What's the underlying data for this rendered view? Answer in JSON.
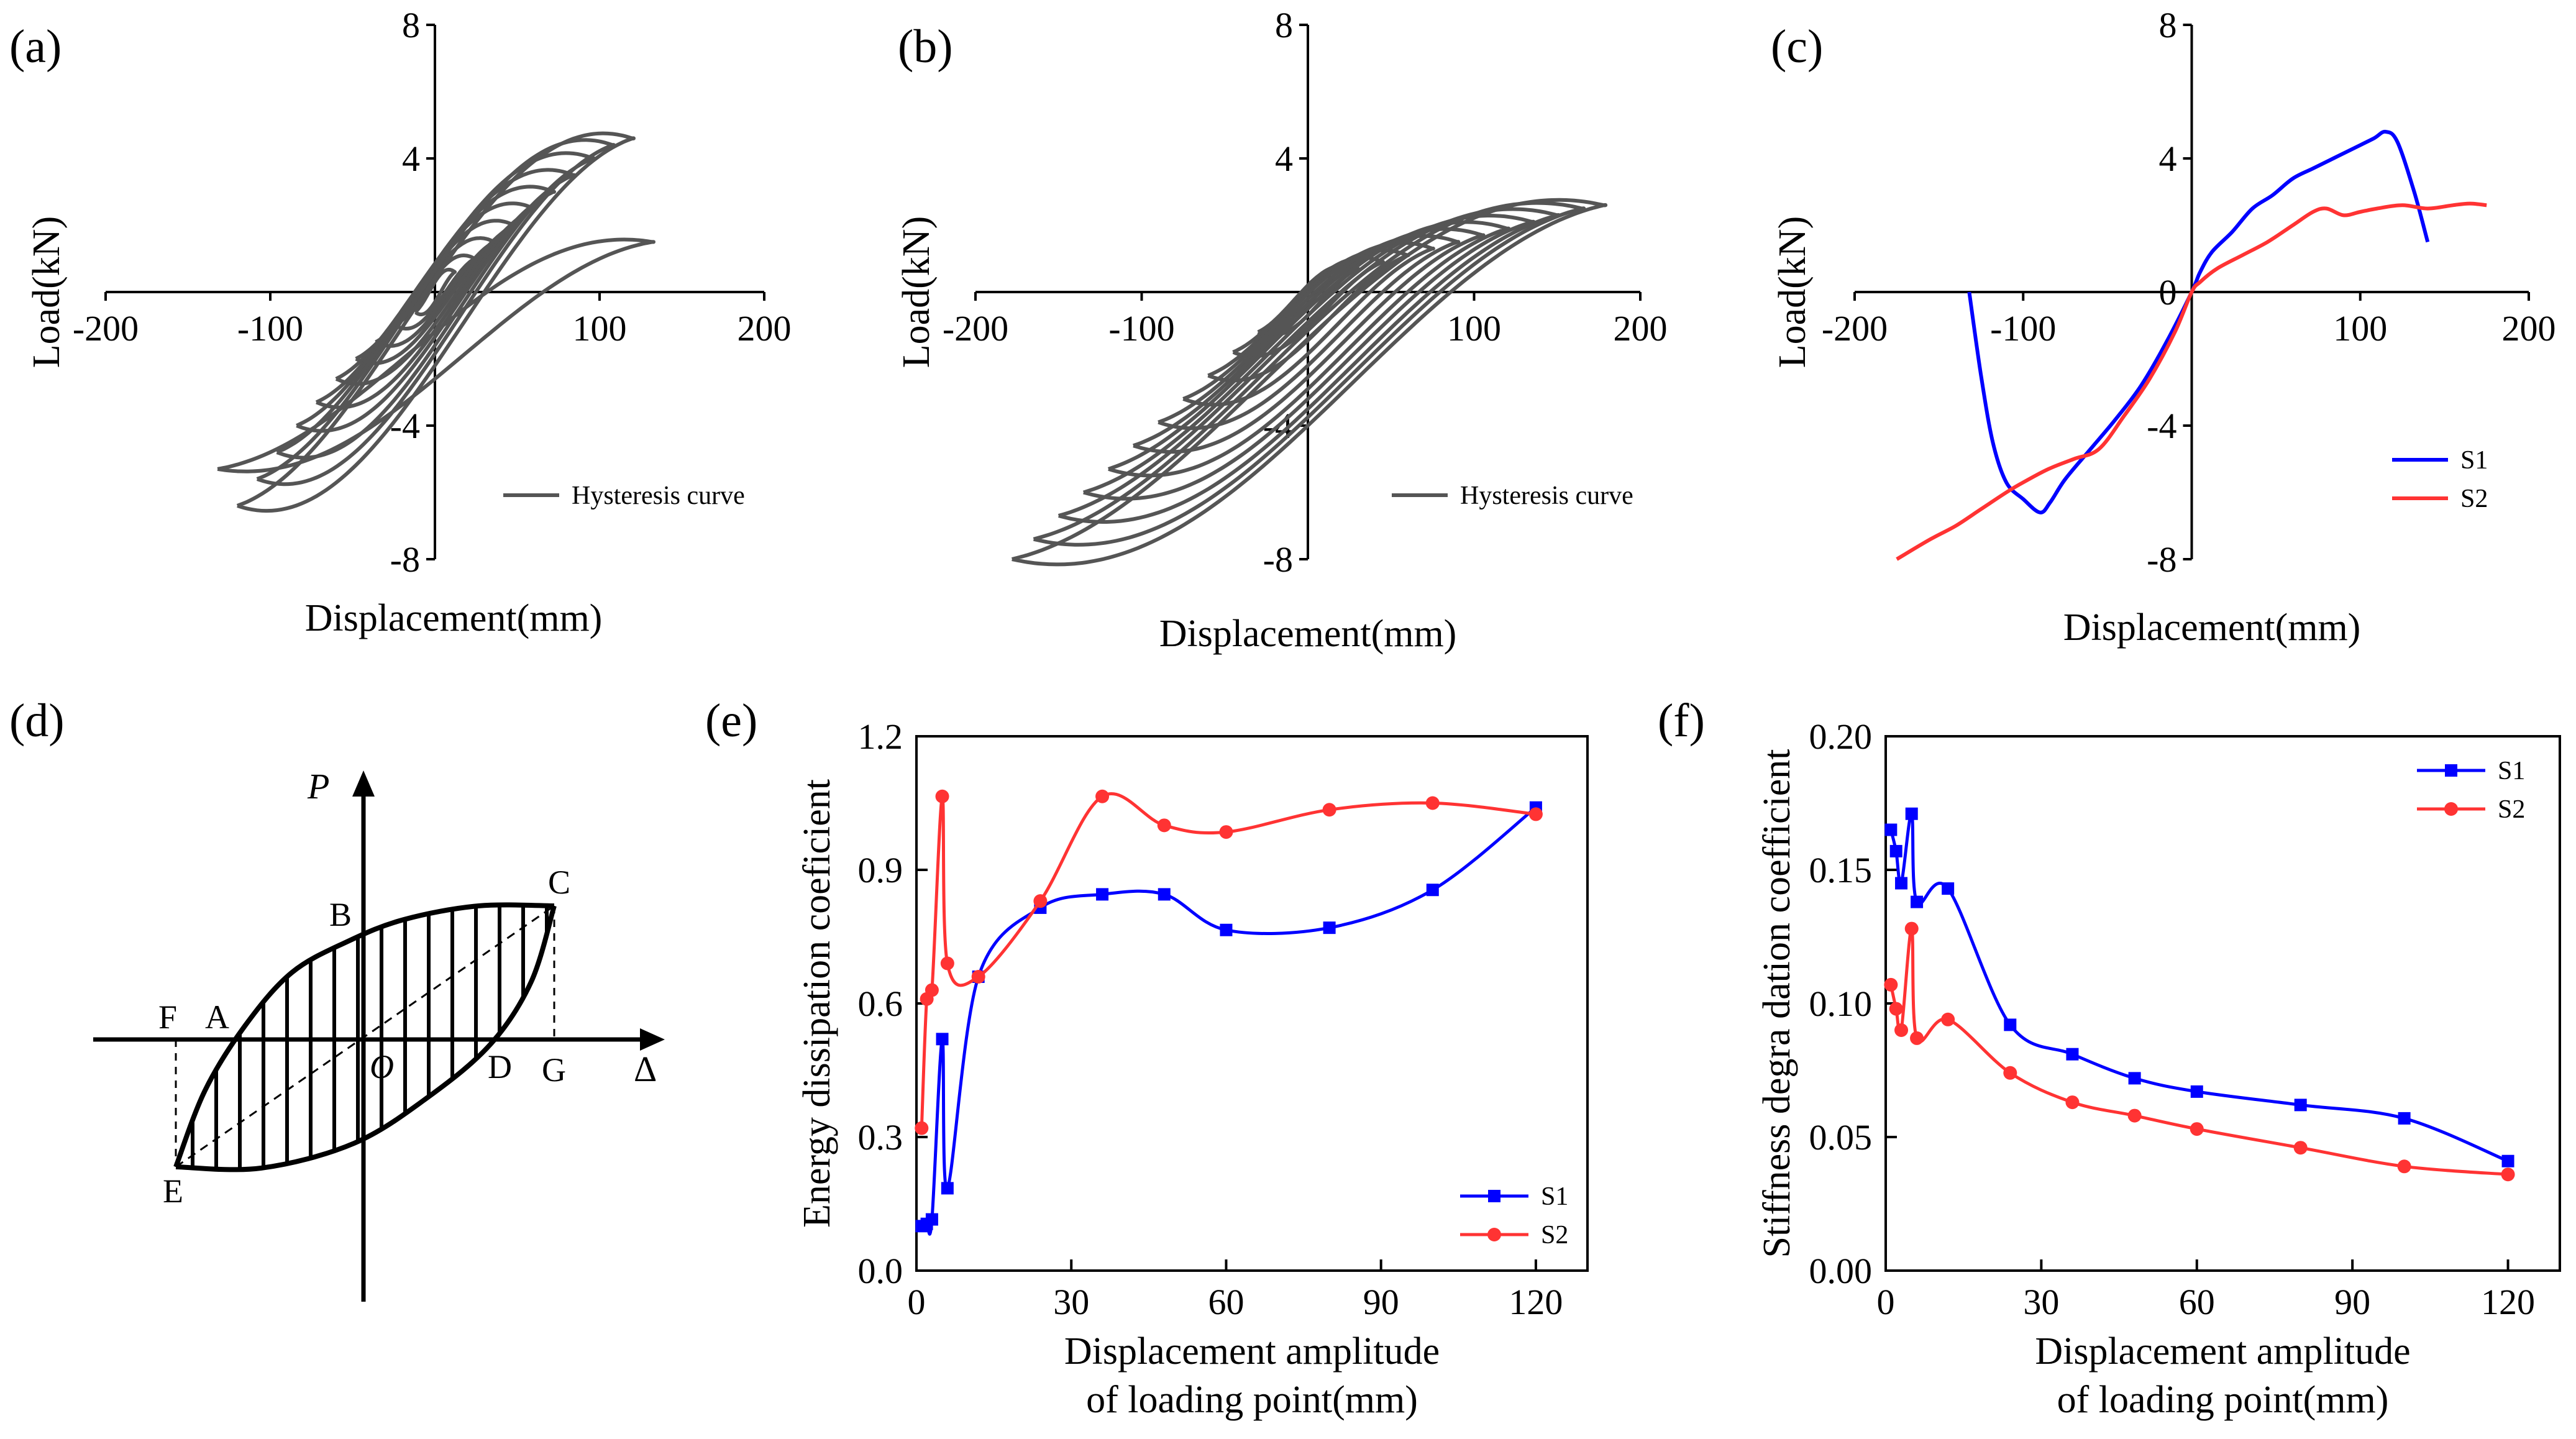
{
  "figure": {
    "panels": [
      "(a)",
      "(b)",
      "(c)",
      "(d)",
      "(e)",
      "(f)"
    ]
  },
  "chart_data": [
    {
      "id": "a",
      "type": "line",
      "panel_label": "(a)",
      "xlabel": "Displacement(mm)",
      "ylabel": "Load(kN)",
      "xlim": [
        -200,
        200
      ],
      "ylim": [
        -8,
        8
      ],
      "x_ticks": [
        -200,
        -100,
        0,
        100,
        200
      ],
      "x_tick_labels": [
        "-200",
        "-100",
        "0",
        "100",
        "200"
      ],
      "y_ticks": [
        -8,
        -4,
        0,
        4,
        8
      ],
      "y_tick_labels": [
        "-8",
        "-4",
        "0",
        "4",
        "8"
      ],
      "legend": [
        {
          "label": "Hysteresis curve",
          "color": "#555555"
        }
      ],
      "series_color": "#555555",
      "loops": [
        {
          "amp": 12,
          "pos": 0.6,
          "neg": -0.6,
          "wid": 0.3
        },
        {
          "amp": 24,
          "pos": 1.0,
          "neg": -1.0,
          "wid": 0.45
        },
        {
          "amp": 36,
          "pos": 1.5,
          "neg": -1.5,
          "wid": 0.6
        },
        {
          "amp": 48,
          "pos": 2.0,
          "neg": -2.0,
          "wid": 0.75
        },
        {
          "amp": 60,
          "pos": 2.5,
          "neg": -2.6,
          "wid": 0.9
        },
        {
          "amp": 72,
          "pos": 3.0,
          "neg": -3.3,
          "wid": 1.0
        },
        {
          "amp": 84,
          "pos": 3.5,
          "neg": -4.0,
          "wid": 1.1
        },
        {
          "amp": 96,
          "pos": 4.0,
          "neg": -4.8,
          "wid": 1.2
        },
        {
          "amp": 108,
          "pos": 4.4,
          "neg": -5.6,
          "wid": 1.25
        },
        {
          "amp": 120,
          "pos": 4.6,
          "neg": -6.4,
          "wid": 1.3
        },
        {
          "amp": 132,
          "pos": 1.5,
          "neg": -5.3,
          "wid": 0.7
        }
      ]
    },
    {
      "id": "b",
      "type": "line",
      "panel_label": "(b)",
      "xlabel": "Displacement(mm)",
      "ylabel": "Load(kN)",
      "xlim": [
        -200,
        200
      ],
      "ylim": [
        -8,
        8
      ],
      "x_ticks": [
        -200,
        -100,
        0,
        100,
        200
      ],
      "x_tick_labels": [
        "-200",
        "-100",
        "0",
        "100",
        "200"
      ],
      "y_ticks": [
        -8,
        -4,
        0,
        4,
        8
      ],
      "y_tick_labels": [
        "-8",
        "-4",
        "0",
        "4",
        "8"
      ],
      "legend": [
        {
          "label": "Hysteresis curve",
          "color": "#555555"
        }
      ],
      "series_color": "#555555",
      "loops": [
        {
          "amp": 15,
          "pos": 0.4,
          "neg": -0.6,
          "wid": 0.3
        },
        {
          "amp": 30,
          "pos": 0.7,
          "neg": -1.2,
          "wid": 0.45
        },
        {
          "amp": 45,
          "pos": 0.9,
          "neg": -1.8,
          "wid": 0.6
        },
        {
          "amp": 60,
          "pos": 1.1,
          "neg": -2.5,
          "wid": 0.75
        },
        {
          "amp": 75,
          "pos": 1.3,
          "neg": -3.2,
          "wid": 0.9
        },
        {
          "amp": 90,
          "pos": 1.5,
          "neg": -3.9,
          "wid": 1.0
        },
        {
          "amp": 105,
          "pos": 1.7,
          "neg": -4.6,
          "wid": 1.1
        },
        {
          "amp": 120,
          "pos": 1.9,
          "neg": -5.3,
          "wid": 1.2
        },
        {
          "amp": 135,
          "pos": 2.1,
          "neg": -6.0,
          "wid": 1.25
        },
        {
          "amp": 150,
          "pos": 2.3,
          "neg": -6.7,
          "wid": 1.3
        },
        {
          "amp": 165,
          "pos": 2.5,
          "neg": -7.4,
          "wid": 1.3
        },
        {
          "amp": 178,
          "pos": 2.6,
          "neg": -8.0,
          "wid": 1.3
        }
      ]
    },
    {
      "id": "c",
      "type": "line",
      "panel_label": "(c)",
      "xlabel": "Displacement(mm)",
      "ylabel": "Load(kN)",
      "xlim": [
        -200,
        200
      ],
      "ylim": [
        -8,
        8
      ],
      "x_ticks": [
        -200,
        -100,
        0,
        100,
        200
      ],
      "x_tick_labels": [
        "-200",
        "-100",
        "0",
        "100",
        "200"
      ],
      "y_ticks": [
        -8,
        -4,
        0,
        4,
        8
      ],
      "y_tick_labels": [
        "-8",
        "-4",
        "0",
        "4",
        "8"
      ],
      "legend_position": "bottom-right",
      "series": [
        {
          "name": "S1",
          "color": "#0000ff",
          "x": [
            -132,
            -125,
            -118,
            -110,
            -100,
            -90,
            -84,
            -75,
            -60,
            -45,
            -30,
            -15,
            0,
            5,
            12,
            24,
            36,
            48,
            60,
            72,
            84,
            96,
            108,
            115,
            122,
            132,
            140
          ],
          "y": [
            0,
            -2.5,
            -4.5,
            -5.7,
            -6.2,
            -6.6,
            -6.3,
            -5.6,
            -4.7,
            -3.8,
            -2.8,
            -1.5,
            0,
            0.6,
            1.2,
            1.8,
            2.5,
            2.9,
            3.4,
            3.7,
            4.0,
            4.3,
            4.6,
            4.8,
            4.5,
            3.0,
            1.5
          ]
        },
        {
          "name": "S2",
          "color": "#ff3333",
          "x": [
            -175,
            -155,
            -140,
            -125,
            -110,
            -100,
            -85,
            -70,
            -55,
            -40,
            -25,
            -10,
            0,
            5,
            15,
            30,
            45,
            60,
            72,
            80,
            90,
            100,
            110,
            125,
            140,
            155,
            165,
            175
          ],
          "y": [
            -8,
            -7.4,
            -7.0,
            -6.5,
            -6.0,
            -5.7,
            -5.3,
            -5.0,
            -4.7,
            -3.7,
            -2.6,
            -1.2,
            0,
            0.3,
            0.7,
            1.1,
            1.5,
            2.0,
            2.4,
            2.5,
            2.3,
            2.4,
            2.5,
            2.6,
            2.5,
            2.6,
            2.65,
            2.6
          ]
        }
      ]
    },
    {
      "id": "d",
      "type": "diagram",
      "panel_label": "(d)",
      "axis_labels": {
        "y": "P",
        "x": "Δ"
      },
      "point_labels": {
        "A": "A",
        "B": "B",
        "C": "C",
        "D": "D",
        "E": "E",
        "F": "F",
        "G": "G",
        "O": "O"
      }
    },
    {
      "id": "e",
      "type": "line",
      "panel_label": "(e)",
      "xlabel_lines": [
        "Displacement amplitude",
        "of loading point(mm)"
      ],
      "ylabel": "Energy dissipation coeficient",
      "xlim": [
        0,
        130
      ],
      "ylim": [
        0,
        1.2
      ],
      "x_ticks": [
        0,
        30,
        60,
        90,
        120
      ],
      "x_tick_labels": [
        "0",
        "30",
        "60",
        "90",
        "120"
      ],
      "y_ticks": [
        0,
        0.3,
        0.6,
        0.9,
        1.2
      ],
      "y_tick_labels": [
        "0.0",
        "0.3",
        "0.6",
        "0.9",
        "1.2"
      ],
      "legend_position": "bottom-right",
      "series": [
        {
          "name": "S1",
          "color": "#0000ff",
          "marker": "square",
          "x": [
            1,
            2,
            3,
            5,
            6,
            12,
            24,
            36,
            48,
            60,
            80,
            100,
            120
          ],
          "y": [
            0.1,
            0.105,
            0.115,
            0.52,
            0.185,
            0.66,
            0.815,
            0.845,
            0.845,
            0.765,
            0.77,
            0.855,
            1.04
          ]
        },
        {
          "name": "S2",
          "color": "#ff3333",
          "marker": "circle",
          "x": [
            1,
            2,
            3,
            5,
            6,
            12,
            24,
            36,
            48,
            60,
            80,
            100,
            120
          ],
          "y": [
            0.32,
            0.61,
            0.63,
            1.065,
            0.69,
            0.66,
            0.83,
            1.065,
            1.0,
            0.985,
            1.035,
            1.05,
            1.025
          ]
        }
      ]
    },
    {
      "id": "f",
      "type": "line",
      "panel_label": "(f)",
      "xlabel_lines": [
        "Displacement amplitude",
        "of loading point(mm)"
      ],
      "ylabel": "Stiffness degra dation coefficient",
      "xlim": [
        0,
        130
      ],
      "ylim": [
        0,
        0.2
      ],
      "x_ticks": [
        0,
        30,
        60,
        90,
        120
      ],
      "x_tick_labels": [
        "0",
        "30",
        "60",
        "90",
        "120"
      ],
      "y_ticks": [
        0,
        0.05,
        0.1,
        0.15,
        0.2
      ],
      "y_tick_labels": [
        "0.00",
        "0.05",
        "0.10",
        "0.15",
        "0.20"
      ],
      "legend_position": "top-right",
      "series": [
        {
          "name": "S1",
          "color": "#0000ff",
          "marker": "square",
          "x": [
            1,
            2,
            3,
            5,
            6,
            12,
            24,
            36,
            48,
            60,
            80,
            100,
            120
          ],
          "y": [
            0.165,
            0.157,
            0.145,
            0.171,
            0.138,
            0.143,
            0.092,
            0.081,
            0.072,
            0.067,
            0.062,
            0.057,
            0.041
          ]
        },
        {
          "name": "S2",
          "color": "#ff3333",
          "marker": "circle",
          "x": [
            1,
            2,
            3,
            5,
            6,
            12,
            24,
            36,
            48,
            60,
            80,
            100,
            120
          ],
          "y": [
            0.107,
            0.098,
            0.09,
            0.128,
            0.087,
            0.094,
            0.074,
            0.063,
            0.058,
            0.053,
            0.046,
            0.039,
            0.036
          ]
        }
      ]
    }
  ]
}
